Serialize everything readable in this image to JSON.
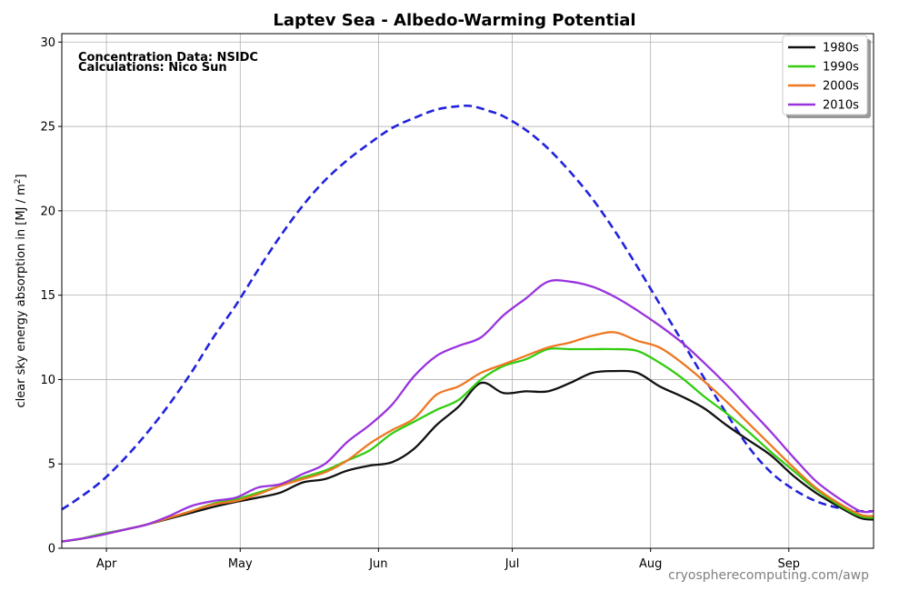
{
  "chart_data": {
    "type": "line",
    "title": "Laptev Sea - Albedo-Warming Potential",
    "xlabel": "",
    "ylabel": "clear sky energy absorption in  [MJ / m²]",
    "ylabel_main": "clear sky energy absorption in  [MJ / m",
    "ylabel_sup": "2",
    "ylabel_end": "]",
    "xlim": [
      81,
      263
    ],
    "ylim": [
      0,
      30.5
    ],
    "y_ticks": [
      0,
      5,
      10,
      15,
      20,
      25,
      30
    ],
    "y_tick_labels": [
      "0",
      "5",
      "10",
      "15",
      "20",
      "25",
      "30"
    ],
    "x_ticks": [
      {
        "x": 91,
        "label": "Apr"
      },
      {
        "x": 121,
        "label": "May"
      },
      {
        "x": 152,
        "label": "Jun"
      },
      {
        "x": 182,
        "label": "Jul"
      },
      {
        "x": 213,
        "label": "Aug"
      },
      {
        "x": 244,
        "label": "Sep"
      }
    ],
    "grid": true,
    "legend_position": "top-right",
    "annotations": [
      "Concentration Data: NSIDC",
      "Calculations: Nico Sun"
    ],
    "watermark": "cryospherecomputing.com/awp",
    "max_potential": {
      "style": "dashed",
      "color": "#2222dd",
      "x": [
        81,
        85,
        90,
        95,
        100,
        105,
        110,
        115,
        120,
        125,
        130,
        135,
        140,
        145,
        150,
        155,
        160,
        165,
        170,
        173,
        177,
        180,
        185,
        190,
        195,
        200,
        205,
        210,
        215,
        220,
        225,
        230,
        235,
        240,
        245,
        250,
        255,
        260,
        263
      ],
      "values": [
        2.3,
        3.0,
        4.0,
        5.3,
        6.8,
        8.5,
        10.4,
        12.5,
        14.4,
        16.5,
        18.5,
        20.3,
        21.8,
        23.0,
        24.0,
        24.9,
        25.5,
        26.0,
        26.2,
        26.2,
        25.9,
        25.6,
        24.8,
        23.7,
        22.3,
        20.7,
        18.8,
        16.7,
        14.5,
        12.3,
        10.1,
        8.0,
        6.0,
        4.5,
        3.5,
        2.8,
        2.4,
        2.2,
        2.2
      ]
    },
    "x": [
      81,
      85,
      90,
      95,
      100,
      105,
      110,
      115,
      120,
      125,
      130,
      135,
      140,
      145,
      150,
      155,
      160,
      165,
      170,
      175,
      180,
      185,
      190,
      195,
      200,
      205,
      210,
      215,
      220,
      225,
      230,
      235,
      240,
      245,
      250,
      255,
      260,
      263
    ],
    "series": [
      {
        "name": "1980s",
        "color": "#111111",
        "values": [
          0.4,
          0.55,
          0.85,
          1.1,
          1.4,
          1.75,
          2.1,
          2.45,
          2.75,
          3.0,
          3.3,
          3.9,
          4.1,
          4.6,
          4.9,
          5.1,
          5.9,
          7.3,
          8.4,
          9.8,
          9.2,
          9.3,
          9.3,
          9.8,
          10.4,
          10.5,
          10.4,
          9.6,
          9.0,
          8.3,
          7.3,
          6.4,
          5.5,
          4.3,
          3.3,
          2.5,
          1.8,
          1.7
        ]
      },
      {
        "name": "1990s",
        "color": "#33cc11",
        "values": [
          0.4,
          0.55,
          0.85,
          1.1,
          1.4,
          1.8,
          2.2,
          2.65,
          2.9,
          3.3,
          3.7,
          4.2,
          4.6,
          5.2,
          5.8,
          6.8,
          7.5,
          8.2,
          8.8,
          10.0,
          10.8,
          11.2,
          11.8,
          11.8,
          11.8,
          11.8,
          11.7,
          11.0,
          10.1,
          9.0,
          8.0,
          6.9,
          5.7,
          4.6,
          3.5,
          2.6,
          1.9,
          1.8
        ]
      },
      {
        "name": "2000s",
        "color": "#ee7722",
        "values": [
          0.4,
          0.55,
          0.8,
          1.1,
          1.4,
          1.8,
          2.2,
          2.6,
          2.8,
          3.2,
          3.7,
          4.1,
          4.5,
          5.2,
          6.2,
          7.0,
          7.7,
          9.1,
          9.6,
          10.4,
          10.9,
          11.4,
          11.9,
          12.2,
          12.6,
          12.8,
          12.3,
          11.9,
          11.0,
          9.9,
          8.7,
          7.4,
          6.1,
          4.8,
          3.6,
          2.7,
          2.0,
          1.9
        ]
      },
      {
        "name": "2010s",
        "color": "#9933dd",
        "values": [
          0.4,
          0.55,
          0.8,
          1.1,
          1.4,
          1.9,
          2.5,
          2.8,
          3.0,
          3.6,
          3.8,
          4.4,
          5.0,
          6.3,
          7.3,
          8.5,
          10.2,
          11.4,
          12.0,
          12.5,
          13.8,
          14.8,
          15.8,
          15.8,
          15.5,
          14.9,
          14.1,
          13.2,
          12.2,
          11.0,
          9.7,
          8.3,
          6.9,
          5.4,
          4.0,
          3.0,
          2.2,
          2.2
        ]
      }
    ]
  }
}
